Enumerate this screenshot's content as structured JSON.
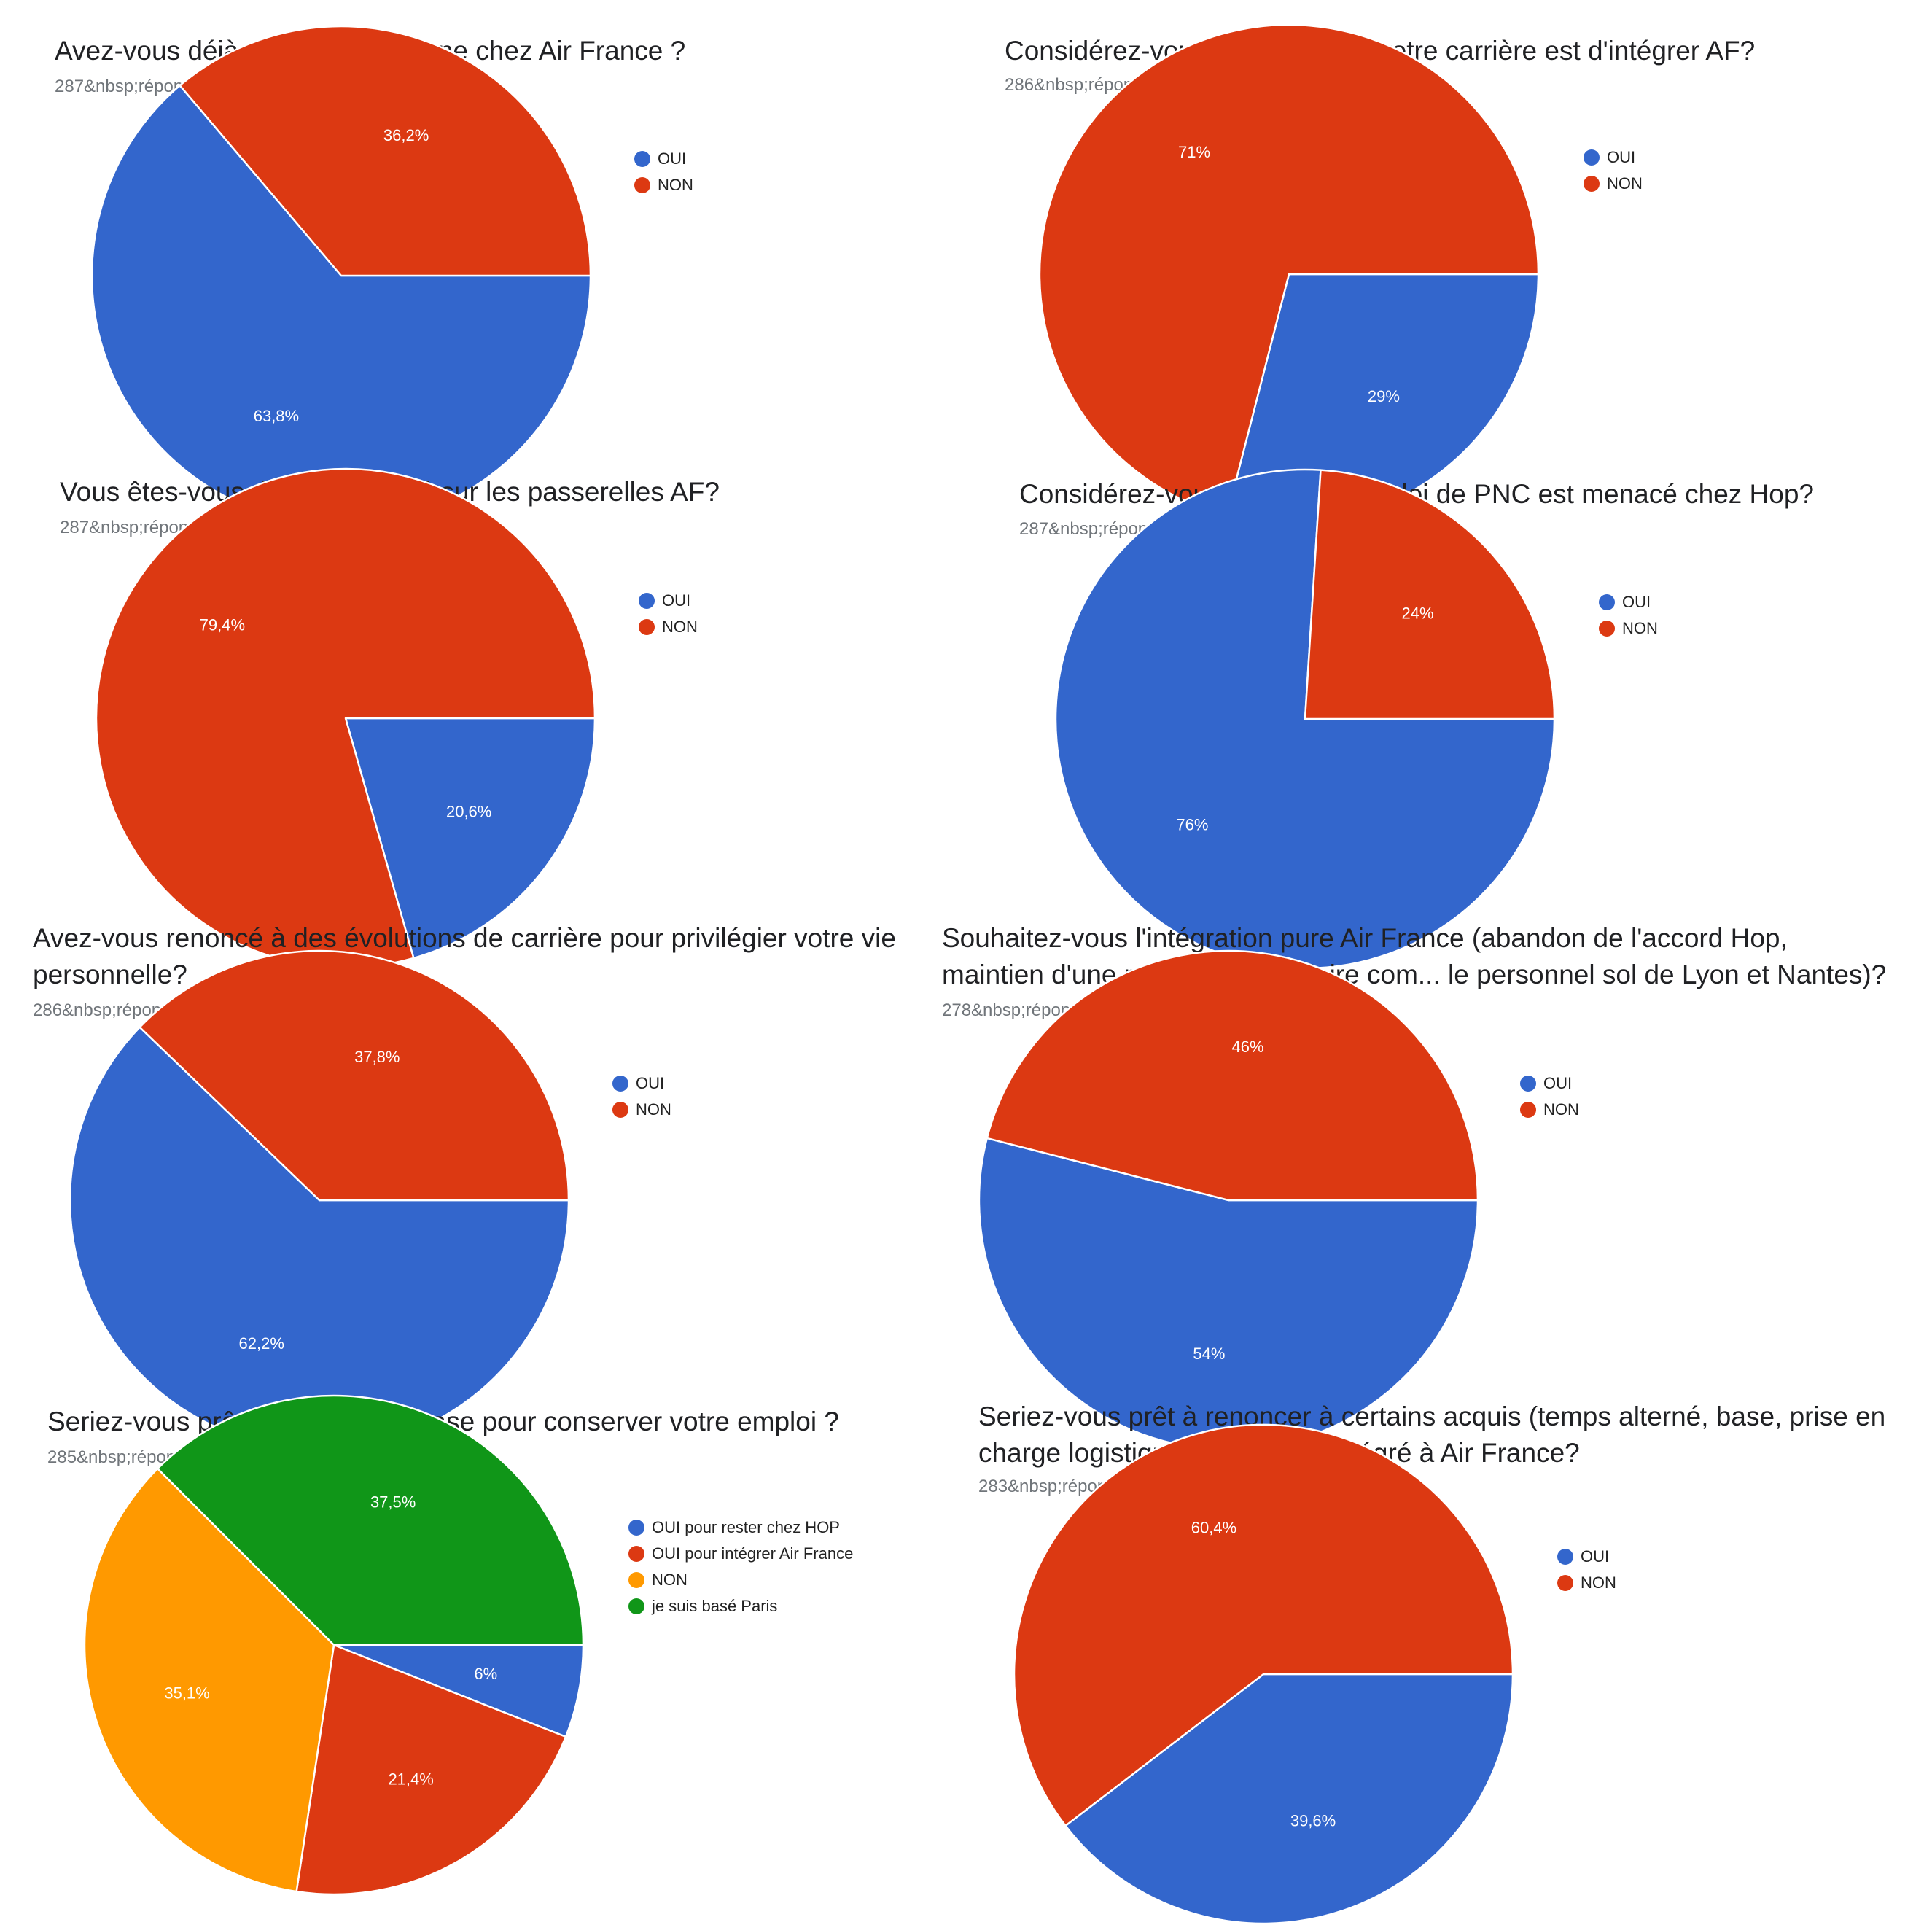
{
  "colors": {
    "OUI": "#3366cc",
    "NON": "#dc3912",
    "NON_orange": "#ff9900",
    "paris": "#109618"
  },
  "chart_data": [
    {
      "type": "pie",
      "title": "Avez-vous déjà postulé en externe chez Air France ?",
      "responses": "287&nbsp;réponses",
      "legend": [
        "OUI",
        "NON"
      ],
      "slices": [
        {
          "label": "OUI",
          "value": 63.8,
          "display": "63,8%",
          "color": "#3366cc"
        },
        {
          "label": "NON",
          "value": 36.2,
          "display": "36,2%",
          "color": "#dc3912"
        }
      ]
    },
    {
      "type": "pie",
      "title": "Considérez-vous que le but de votre carrière est d'intégrer AF?",
      "responses": "286&nbsp;réponses",
      "legend": [
        "OUI",
        "NON"
      ],
      "slices": [
        {
          "label": "OUI",
          "value": 29,
          "display": "29%",
          "color": "#3366cc"
        },
        {
          "label": "NON",
          "value": 71,
          "display": "71%",
          "color": "#dc3912"
        }
      ]
    },
    {
      "type": "pie",
      "title": "Vous êtes-vous déjà positionné sur les passerelles AF?",
      "responses": "287&nbsp;réponses",
      "legend": [
        "OUI",
        "NON"
      ],
      "slices": [
        {
          "label": "OUI",
          "value": 20.6,
          "display": "20,6%",
          "color": "#3366cc"
        },
        {
          "label": "NON",
          "value": 79.4,
          "display": "79,4%",
          "color": "#dc3912"
        }
      ]
    },
    {
      "type": "pie",
      "title": "Considérez-vous que votre emploi de PNC est menacé chez Hop?",
      "responses": "287&nbsp;réponses",
      "legend": [
        "OUI",
        "NON"
      ],
      "slices": [
        {
          "label": "OUI",
          "value": 76,
          "display": "76%",
          "color": "#3366cc"
        },
        {
          "label": "NON",
          "value": 24,
          "display": "24%",
          "color": "#dc3912"
        }
      ]
    },
    {
      "type": "pie",
      "title": [
        "Avez-vous renoncé à des évolutions de carrière pour privilégier votre vie",
        "personnelle?"
      ],
      "responses": "286&nbsp;réponses",
      "legend": [
        "OUI",
        "NON"
      ],
      "slices": [
        {
          "label": "OUI",
          "value": 62.2,
          "display": "62,2%",
          "color": "#3366cc"
        },
        {
          "label": "NON",
          "value": 37.8,
          "display": "37,8%",
          "color": "#dc3912"
        }
      ]
    },
    {
      "type": "pie",
      "title": [
        "Souhaitez-vous l'intégration pure Air France (abandon de l'accord Hop,",
        "maintien d'une moyenne de salaire com... le personnel sol de Lyon et Nantes)?"
      ],
      "responses": "278&nbsp;réponses",
      "legend": [
        "OUI",
        "NON"
      ],
      "slices": [
        {
          "label": "OUI",
          "value": 54,
          "display": "54%",
          "color": "#3366cc"
        },
        {
          "label": "NON",
          "value": 46,
          "display": "46%",
          "color": "#dc3912"
        }
      ]
    },
    {
      "type": "pie",
      "title": "Seriez-vous prêt à changer de base pour conserver votre emploi ?",
      "responses": "285&nbsp;réponses",
      "legend": [
        "OUI pour rester chez HOP",
        "OUI pour intégrer Air France",
        "NON",
        "je suis basé Paris"
      ],
      "slices": [
        {
          "label": "OUI pour rester chez HOP",
          "value": 6,
          "display": "6%",
          "color": "#3366cc"
        },
        {
          "label": "OUI pour intégrer Air France",
          "value": 21.4,
          "display": "21,4%",
          "color": "#dc3912"
        },
        {
          "label": "NON",
          "value": 35.1,
          "display": "35,1%",
          "color": "#ff9900"
        },
        {
          "label": "je suis basé Paris",
          "value": 37.5,
          "display": "37,5%",
          "color": "#109618"
        }
      ]
    },
    {
      "type": "pie",
      "title": [
        "Seriez-vous prêt à renoncer à certains acquis (temps alterné, base, prise en",
        "charge logistique...)pour être intégré à Air France?"
      ],
      "responses": "283&nbsp;réponses",
      "legend": [
        "OUI",
        "NON"
      ],
      "slices": [
        {
          "label": "OUI",
          "value": 39.6,
          "display": "39,6%",
          "color": "#3366cc"
        },
        {
          "label": "NON",
          "value": 60.4,
          "display": "60,4%",
          "color": "#dc3912"
        }
      ]
    }
  ]
}
